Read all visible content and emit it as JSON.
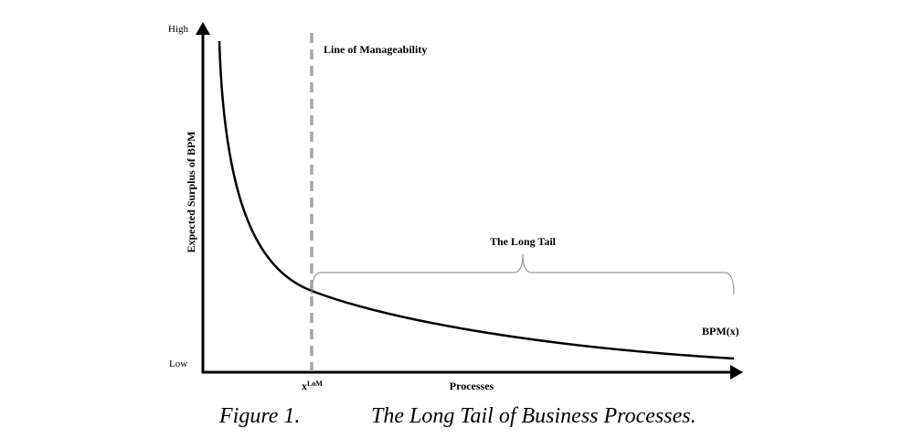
{
  "axes": {
    "y_high": "High",
    "y_low": "Low",
    "y_label": "Expected Surplus of BPM",
    "x_label": "Processes",
    "x_mark": "x",
    "x_mark_sup": "LoM"
  },
  "annotations": {
    "line_label": "Line of Manageability",
    "tail_label": "The Long Tail",
    "curve_label": "BPM(x)"
  },
  "caption": {
    "number": "Figure 1.",
    "title": "The Long Tail of Business Processes."
  }
}
